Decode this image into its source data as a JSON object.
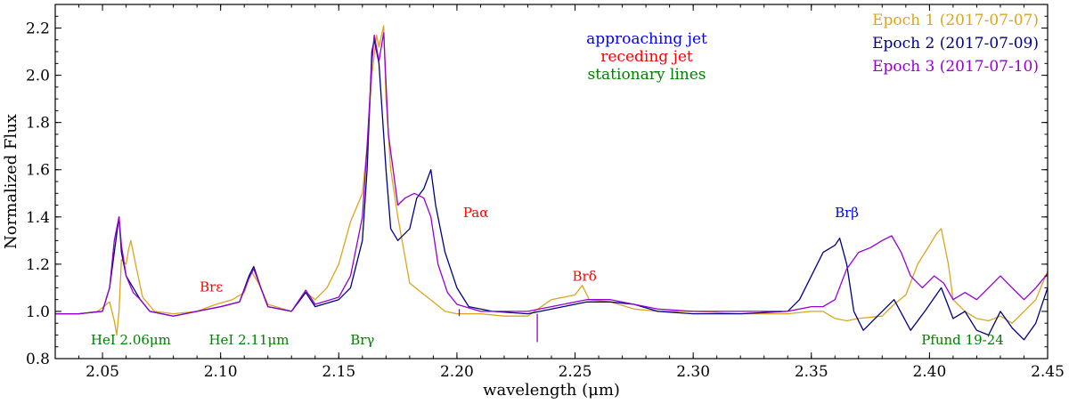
{
  "chart_data": {
    "type": "line",
    "xlabel": "wavelength (μm)",
    "ylabel": "Normalized Flux",
    "xlim": [
      2.03,
      2.45
    ],
    "ylim": [
      0.8,
      2.3
    ],
    "x_ticks": [
      2.05,
      2.1,
      2.15,
      2.2,
      2.25,
      2.3,
      2.35,
      2.4,
      2.45
    ],
    "x_tick_labels": [
      "2.05",
      "2.10",
      "2.15",
      "2.20",
      "2.25",
      "2.30",
      "2.35",
      "2.40",
      "2.45"
    ],
    "y_ticks": [
      0.8,
      1.0,
      1.2,
      1.4,
      1.6,
      1.8,
      2.0,
      2.2
    ],
    "y_tick_labels": [
      "0.8",
      "1.0",
      "1.2",
      "1.4",
      "1.6",
      "1.8",
      "2.0",
      "2.2"
    ],
    "legend_position": "top-right",
    "colors": {
      "epoch1": "#DAA520",
      "epoch2": "#000080",
      "epoch3": "#9400D3",
      "approaching": "#0000FF",
      "receding": "#FF0000",
      "stationary": "#008000"
    },
    "series": [
      {
        "name": "Epoch 1 (2017-07-07)",
        "key": "epoch1",
        "points": [
          [
            2.03,
            0.99
          ],
          [
            2.04,
            0.99
          ],
          [
            2.048,
            1.0
          ],
          [
            2.053,
            1.04
          ],
          [
            2.055,
            0.96
          ],
          [
            2.056,
            0.9
          ],
          [
            2.057,
            1.0
          ],
          [
            2.058,
            1.22
          ],
          [
            2.06,
            1.2
          ],
          [
            2.061,
            1.26
          ],
          [
            2.062,
            1.3
          ],
          [
            2.064,
            1.2
          ],
          [
            2.067,
            1.06
          ],
          [
            2.072,
            1.0
          ],
          [
            2.08,
            0.99
          ],
          [
            2.09,
            1.0
          ],
          [
            2.098,
            1.03
          ],
          [
            2.105,
            1.05
          ],
          [
            2.11,
            1.08
          ],
          [
            2.113,
            1.17
          ],
          [
            2.116,
            1.12
          ],
          [
            2.12,
            1.03
          ],
          [
            2.13,
            1.0
          ],
          [
            2.136,
            1.08
          ],
          [
            2.14,
            1.05
          ],
          [
            2.145,
            1.1
          ],
          [
            2.15,
            1.2
          ],
          [
            2.155,
            1.38
          ],
          [
            2.16,
            1.5
          ],
          [
            2.162,
            1.7
          ],
          [
            2.164,
            2.0
          ],
          [
            2.166,
            2.17
          ],
          [
            2.167,
            2.12
          ],
          [
            2.169,
            2.21
          ],
          [
            2.17,
            1.9
          ],
          [
            2.172,
            1.6
          ],
          [
            2.175,
            1.4
          ],
          [
            2.18,
            1.12
          ],
          [
            2.185,
            1.08
          ],
          [
            2.19,
            1.04
          ],
          [
            2.195,
            1.0
          ],
          [
            2.2,
            0.99
          ],
          [
            2.21,
            0.99
          ],
          [
            2.22,
            0.98
          ],
          [
            2.23,
            0.98
          ],
          [
            2.24,
            1.05
          ],
          [
            2.25,
            1.07
          ],
          [
            2.253,
            1.11
          ],
          [
            2.256,
            1.05
          ],
          [
            2.265,
            1.04
          ],
          [
            2.275,
            1.01
          ],
          [
            2.285,
            1.0
          ],
          [
            2.3,
            1.0
          ],
          [
            2.32,
            0.99
          ],
          [
            2.34,
            0.99
          ],
          [
            2.35,
            1.0
          ],
          [
            2.355,
            1.0
          ],
          [
            2.36,
            0.97
          ],
          [
            2.365,
            0.96
          ],
          [
            2.37,
            0.97
          ],
          [
            2.38,
            0.98
          ],
          [
            2.385,
            1.03
          ],
          [
            2.39,
            1.07
          ],
          [
            2.395,
            1.2
          ],
          [
            2.4,
            1.28
          ],
          [
            2.403,
            1.33
          ],
          [
            2.405,
            1.35
          ],
          [
            2.408,
            1.2
          ],
          [
            2.41,
            1.05
          ],
          [
            2.415,
            1.0
          ],
          [
            2.42,
            0.97
          ],
          [
            2.425,
            0.96
          ],
          [
            2.43,
            0.98
          ],
          [
            2.435,
            0.95
          ],
          [
            2.44,
            1.0
          ],
          [
            2.445,
            1.05
          ],
          [
            2.45,
            1.17
          ]
        ]
      },
      {
        "name": "Epoch 2 (2017-07-09)",
        "key": "epoch2",
        "points": [
          [
            2.03,
            0.99
          ],
          [
            2.04,
            0.99
          ],
          [
            2.05,
            1.0
          ],
          [
            2.053,
            1.1
          ],
          [
            2.055,
            1.25
          ],
          [
            2.057,
            1.4
          ],
          [
            2.058,
            1.25
          ],
          [
            2.06,
            1.15
          ],
          [
            2.063,
            1.1
          ],
          [
            2.066,
            1.05
          ],
          [
            2.07,
            1.0
          ],
          [
            2.08,
            0.98
          ],
          [
            2.09,
            1.0
          ],
          [
            2.1,
            1.02
          ],
          [
            2.108,
            1.04
          ],
          [
            2.112,
            1.15
          ],
          [
            2.114,
            1.19
          ],
          [
            2.117,
            1.1
          ],
          [
            2.12,
            1.02
          ],
          [
            2.13,
            1.0
          ],
          [
            2.136,
            1.08
          ],
          [
            2.14,
            1.02
          ],
          [
            2.15,
            1.05
          ],
          [
            2.155,
            1.1
          ],
          [
            2.16,
            1.3
          ],
          [
            2.162,
            1.6
          ],
          [
            2.164,
            2.1
          ],
          [
            2.165,
            2.15
          ],
          [
            2.167,
            2.05
          ],
          [
            2.17,
            1.6
          ],
          [
            2.172,
            1.35
          ],
          [
            2.175,
            1.3
          ],
          [
            2.18,
            1.35
          ],
          [
            2.183,
            1.48
          ],
          [
            2.186,
            1.52
          ],
          [
            2.189,
            1.6
          ],
          [
            2.191,
            1.45
          ],
          [
            2.195,
            1.25
          ],
          [
            2.2,
            1.1
          ],
          [
            2.205,
            1.02
          ],
          [
            2.215,
            1.0
          ],
          [
            2.23,
            0.99
          ],
          [
            2.245,
            1.02
          ],
          [
            2.255,
            1.04
          ],
          [
            2.265,
            1.04
          ],
          [
            2.275,
            1.03
          ],
          [
            2.285,
            1.0
          ],
          [
            2.3,
            0.99
          ],
          [
            2.32,
            0.99
          ],
          [
            2.34,
            1.0
          ],
          [
            2.345,
            1.05
          ],
          [
            2.35,
            1.15
          ],
          [
            2.355,
            1.25
          ],
          [
            2.36,
            1.28
          ],
          [
            2.362,
            1.31
          ],
          [
            2.365,
            1.2
          ],
          [
            2.368,
            1.0
          ],
          [
            2.372,
            0.92
          ],
          [
            2.378,
            0.98
          ],
          [
            2.385,
            1.05
          ],
          [
            2.392,
            0.92
          ],
          [
            2.398,
            1.0
          ],
          [
            2.405,
            1.1
          ],
          [
            2.41,
            0.97
          ],
          [
            2.415,
            1.0
          ],
          [
            2.42,
            0.92
          ],
          [
            2.425,
            0.9
          ],
          [
            2.43,
            1.0
          ],
          [
            2.435,
            0.93
          ],
          [
            2.44,
            0.88
          ],
          [
            2.445,
            0.95
          ],
          [
            2.45,
            1.1
          ]
        ]
      },
      {
        "name": "Epoch 3 (2017-07-10)",
        "key": "epoch3",
        "points": [
          [
            2.03,
            0.99
          ],
          [
            2.04,
            0.99
          ],
          [
            2.05,
            1.0
          ],
          [
            2.053,
            1.1
          ],
          [
            2.055,
            1.3
          ],
          [
            2.057,
            1.4
          ],
          [
            2.058,
            1.28
          ],
          [
            2.06,
            1.15
          ],
          [
            2.063,
            1.08
          ],
          [
            2.066,
            1.05
          ],
          [
            2.07,
            1.0
          ],
          [
            2.08,
            0.98
          ],
          [
            2.09,
            1.0
          ],
          [
            2.1,
            1.02
          ],
          [
            2.108,
            1.04
          ],
          [
            2.112,
            1.14
          ],
          [
            2.114,
            1.18
          ],
          [
            2.117,
            1.1
          ],
          [
            2.12,
            1.02
          ],
          [
            2.13,
            1.0
          ],
          [
            2.136,
            1.09
          ],
          [
            2.14,
            1.03
          ],
          [
            2.15,
            1.06
          ],
          [
            2.155,
            1.15
          ],
          [
            2.16,
            1.4
          ],
          [
            2.162,
            1.7
          ],
          [
            2.164,
            2.05
          ],
          [
            2.165,
            2.17
          ],
          [
            2.167,
            2.06
          ],
          [
            2.169,
            2.18
          ],
          [
            2.171,
            1.75
          ],
          [
            2.175,
            1.45
          ],
          [
            2.178,
            1.48
          ],
          [
            2.182,
            1.5
          ],
          [
            2.186,
            1.48
          ],
          [
            2.189,
            1.4
          ],
          [
            2.192,
            1.2
          ],
          [
            2.196,
            1.08
          ],
          [
            2.2,
            1.03
          ],
          [
            2.21,
            1.0
          ],
          [
            2.23,
            1.0
          ],
          [
            2.245,
            1.03
          ],
          [
            2.255,
            1.05
          ],
          [
            2.265,
            1.05
          ],
          [
            2.275,
            1.03
          ],
          [
            2.285,
            1.01
          ],
          [
            2.3,
            1.0
          ],
          [
            2.32,
            1.0
          ],
          [
            2.34,
            1.0
          ],
          [
            2.35,
            1.02
          ],
          [
            2.355,
            1.02
          ],
          [
            2.36,
            1.05
          ],
          [
            2.365,
            1.18
          ],
          [
            2.37,
            1.25
          ],
          [
            2.375,
            1.27
          ],
          [
            2.38,
            1.3
          ],
          [
            2.384,
            1.32
          ],
          [
            2.388,
            1.25
          ],
          [
            2.392,
            1.15
          ],
          [
            2.397,
            1.1
          ],
          [
            2.402,
            1.15
          ],
          [
            2.406,
            1.12
          ],
          [
            2.41,
            1.05
          ],
          [
            2.415,
            1.08
          ],
          [
            2.42,
            1.05
          ],
          [
            2.425,
            1.1
          ],
          [
            2.43,
            1.15
          ],
          [
            2.435,
            1.1
          ],
          [
            2.44,
            1.05
          ],
          [
            2.445,
            1.1
          ],
          [
            2.45,
            1.16
          ]
        ]
      }
    ],
    "spikes": [
      {
        "key": "epoch3",
        "x": 2.201,
        "y_from": 1.01,
        "y_to": 0.98
      },
      {
        "key": "epoch3",
        "x": 2.234,
        "y_from": 0.99,
        "y_to": 0.87
      }
    ],
    "legend": [
      {
        "text": "Epoch 1 (2017-07-07)",
        "key": "epoch1"
      },
      {
        "text": "Epoch 2 (2017-07-09)",
        "key": "epoch2"
      },
      {
        "text": "Epoch 3 (2017-07-10)",
        "key": "epoch3"
      }
    ],
    "category_legend": [
      {
        "text": "approaching jet",
        "key": "approaching"
      },
      {
        "text": "receding jet",
        "key": "receding"
      },
      {
        "text": "stationary lines",
        "key": "stationary"
      }
    ],
    "annotations": [
      {
        "text": "HeI 2.06μm",
        "x": 2.062,
        "y": 0.86,
        "key": "stationary"
      },
      {
        "text": "HeI 2.11μm",
        "x": 2.112,
        "y": 0.86,
        "key": "stationary"
      },
      {
        "text": "Brγ",
        "x": 2.16,
        "y": 0.86,
        "key": "stationary"
      },
      {
        "text": "Pfund 19-24",
        "x": 2.414,
        "y": 0.86,
        "key": "stationary"
      },
      {
        "text": "Brε",
        "x": 2.096,
        "y": 1.085,
        "key": "receding"
      },
      {
        "text": "Paα",
        "x": 2.208,
        "y": 1.4,
        "key": "receding"
      },
      {
        "text": "Brδ",
        "x": 2.254,
        "y": 1.13,
        "key": "receding"
      },
      {
        "text": "Brβ",
        "x": 2.365,
        "y": 1.4,
        "key": "approaching"
      }
    ]
  }
}
